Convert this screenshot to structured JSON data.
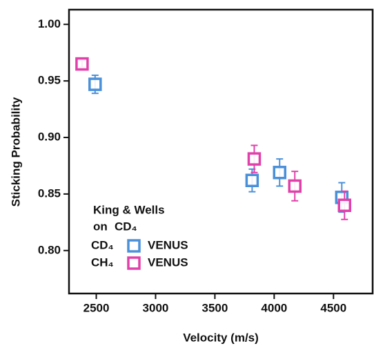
{
  "chart_data": {
    "type": "scatter",
    "x_label": "Velocity (m/s)",
    "y_label": "Sticking Probability",
    "xlim": [
      2270,
      4830
    ],
    "xticks": [
      2500,
      3000,
      3500,
      4000,
      4500
    ],
    "ylim": [
      0.762,
      1.013
    ],
    "yticks": [
      {
        "value": 1.0,
        "label": "1.00"
      },
      {
        "value": 0.95,
        "label": "0.95"
      },
      {
        "value": 0.9,
        "label": "0.90"
      },
      {
        "value": 0.85,
        "label": "0.85"
      },
      {
        "value": 0.8,
        "label": "0.80"
      }
    ],
    "legend_title": {
      "line1": "King & Wells",
      "line2": "on",
      "surface": "CD₄",
      "surface_color": "#4a90d9"
    },
    "series": [
      {
        "name": "CD₄",
        "method": "VENUS",
        "color": "#4a90d9",
        "x": [
          2490,
          3814,
          4046,
          4570
        ],
        "values": [
          0.947,
          0.862,
          0.869,
          0.847
        ],
        "errors": [
          0.008,
          0.01,
          0.012,
          0.013
        ]
      },
      {
        "name": "CH₄",
        "method": "VENUS",
        "color": "#e040aa",
        "x": [
          2380,
          3832,
          4174,
          4593
        ],
        "values": [
          0.965,
          0.881,
          0.857,
          0.84
        ],
        "errors": [
          0.003,
          0.012,
          0.013,
          0.0125
        ]
      }
    ]
  }
}
